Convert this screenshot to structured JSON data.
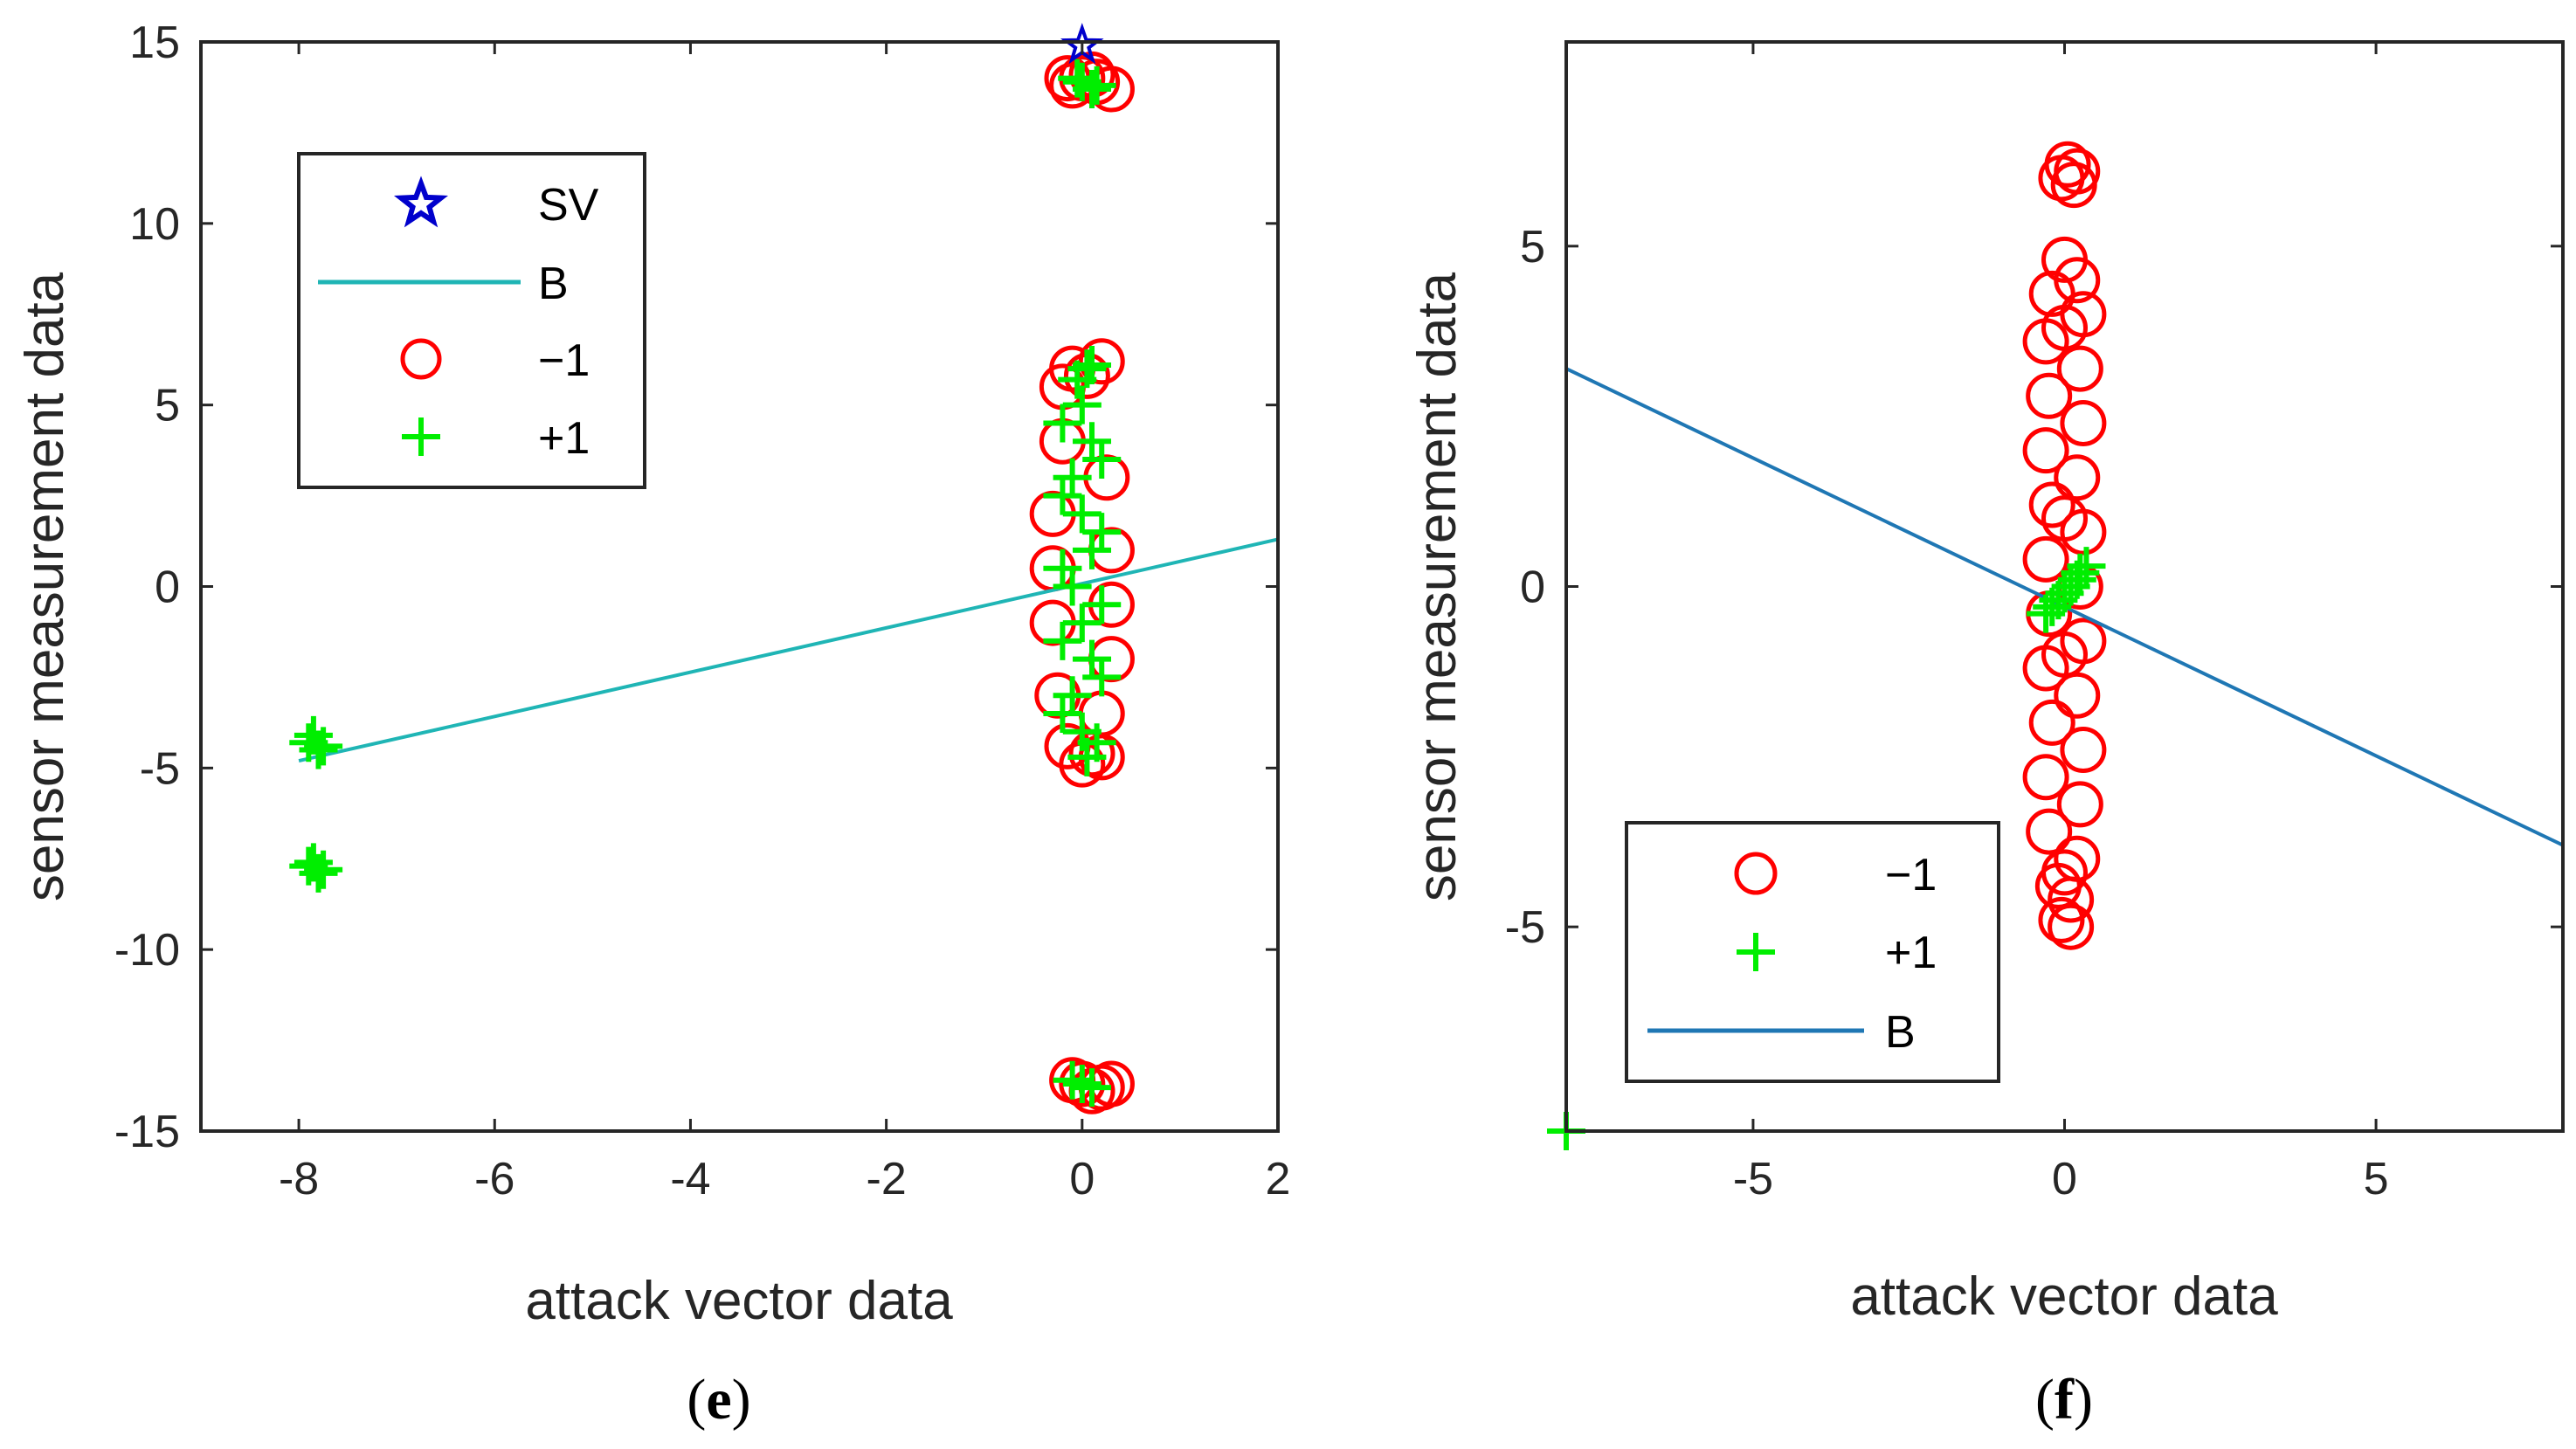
{
  "chart_data": [
    {
      "type": "scatter",
      "panel_label": "e",
      "xlabel": "attack vector data",
      "ylabel": "sensor measurement data",
      "xlim": [
        -9,
        2
      ],
      "ylim": [
        -15,
        15
      ],
      "xticks": [
        -8,
        -6,
        -4,
        -2,
        0,
        2
      ],
      "xtick_labels": [
        "-8",
        "-6",
        "-4",
        "-2",
        "0",
        "2"
      ],
      "yticks": [
        -15,
        -10,
        -5,
        0,
        5,
        10,
        15
      ],
      "ytick_labels": [
        "-15",
        "-10",
        "-5",
        "0",
        "5",
        "10",
        "15"
      ],
      "legend": [
        {
          "kind": "star",
          "label": "SV",
          "color": "#0000cc"
        },
        {
          "kind": "line",
          "label": "B",
          "color": "#1fb5b5"
        },
        {
          "kind": "circle",
          "label": "−1",
          "color": "#ff0000"
        },
        {
          "kind": "plus",
          "label": "+1",
          "color": "#00ee00"
        }
      ],
      "legend_position": "top-left",
      "boundary": {
        "x1": -8,
        "y1": -4.8,
        "x2": 2,
        "y2": 1.3,
        "color": "#1fb5b5"
      },
      "series": [
        {
          "name": "−1",
          "marker": "circle",
          "color": "#ff0000",
          "points": [
            [
              0,
              14
            ],
            [
              0.15,
              13.9
            ],
            [
              -0.1,
              13.8
            ],
            [
              0.3,
              13.7
            ],
            [
              0.1,
              14.1
            ],
            [
              -0.15,
              14
            ],
            [
              0,
              -13.7
            ],
            [
              0.2,
              -13.8
            ],
            [
              -0.1,
              -13.6
            ],
            [
              0.3,
              -13.7
            ],
            [
              0.1,
              -13.9
            ],
            [
              -0.1,
              6
            ],
            [
              0.2,
              6.2
            ],
            [
              0.05,
              5.8
            ],
            [
              -0.2,
              5.5
            ],
            [
              0.1,
              -4.6
            ],
            [
              -0.15,
              -4.4
            ],
            [
              0.2,
              -4.7
            ],
            [
              0,
              -4.9
            ],
            [
              -0.3,
              2
            ],
            [
              0.3,
              1
            ],
            [
              -0.3,
              -1
            ],
            [
              0.3,
              -2
            ],
            [
              -0.25,
              -3
            ],
            [
              0.25,
              3
            ],
            [
              -0.3,
              0.5
            ],
            [
              0.3,
              -0.5
            ],
            [
              -0.2,
              4
            ],
            [
              0.2,
              -3.5
            ]
          ]
        },
        {
          "name": "+1",
          "marker": "plus",
          "color": "#00ee00",
          "points": [
            [
              -7.9,
              -4.3
            ],
            [
              -7.8,
              -4.5
            ],
            [
              -7.85,
              -4.1
            ],
            [
              -7.75,
              -4.4
            ],
            [
              -7.9,
              -7.7
            ],
            [
              -7.8,
              -7.9
            ],
            [
              -7.85,
              -7.6
            ],
            [
              -7.75,
              -7.8
            ],
            [
              0,
              13.9
            ],
            [
              0.1,
              13.7
            ],
            [
              -0.05,
              14
            ],
            [
              0.15,
              13.8
            ],
            [
              0,
              -13.7
            ],
            [
              0.1,
              -13.8
            ],
            [
              -0.1,
              -13.6
            ],
            [
              0.05,
              6
            ],
            [
              -0.05,
              5.7
            ],
            [
              0.1,
              6.1
            ],
            [
              0,
              5
            ],
            [
              0.1,
              4
            ],
            [
              -0.1,
              3
            ],
            [
              0,
              2
            ],
            [
              0.1,
              1
            ],
            [
              -0.1,
              0
            ],
            [
              0,
              -1
            ],
            [
              0.1,
              -2
            ],
            [
              -0.1,
              -3
            ],
            [
              0,
              -4
            ],
            [
              0.05,
              -4.7
            ],
            [
              -0.2,
              4.5
            ],
            [
              0.2,
              3.5
            ],
            [
              -0.2,
              2.5
            ],
            [
              0.2,
              1.5
            ],
            [
              -0.2,
              0.5
            ],
            [
              0.2,
              -0.5
            ],
            [
              -0.2,
              -1.5
            ],
            [
              0.2,
              -2.5
            ],
            [
              -0.2,
              -3.5
            ],
            [
              0.15,
              -4.3
            ]
          ]
        },
        {
          "name": "SV",
          "marker": "star",
          "color": "#0000cc",
          "points": [
            [
              0,
              14.9
            ]
          ]
        }
      ]
    },
    {
      "type": "scatter",
      "panel_label": "f",
      "xlabel": "attack vector data",
      "ylabel": "sensor measurement data",
      "xlim": [
        -8,
        8
      ],
      "ylim": [
        -8,
        8
      ],
      "xticks": [
        -5,
        0,
        5
      ],
      "xtick_labels": [
        "-5",
        "0",
        "5"
      ],
      "yticks": [
        -5,
        0,
        5
      ],
      "ytick_labels": [
        "-5",
        "0",
        "5"
      ],
      "legend": [
        {
          "kind": "circle",
          "label": "−1",
          "color": "#ff0000"
        },
        {
          "kind": "plus",
          "label": "+1",
          "color": "#00ee00"
        },
        {
          "kind": "line",
          "label": "B",
          "color": "#1f77b4"
        }
      ],
      "legend_position": "bottom-left",
      "boundary": {
        "x1": -8,
        "y1": 3.2,
        "x2": 8,
        "y2": -3.8,
        "color": "#1f77b4"
      },
      "series": [
        {
          "name": "−1",
          "marker": "circle",
          "color": "#ff0000",
          "points": [
            [
              0.05,
              6.2
            ],
            [
              0.15,
              5.9
            ],
            [
              -0.05,
              6
            ],
            [
              0.2,
              6.1
            ],
            [
              0,
              4.8
            ],
            [
              0.2,
              4.5
            ],
            [
              -0.2,
              4.3
            ],
            [
              0.3,
              4
            ],
            [
              -0.3,
              3.6
            ],
            [
              0.25,
              3.2
            ],
            [
              -0.25,
              2.8
            ],
            [
              0.3,
              2.4
            ],
            [
              -0.3,
              2
            ],
            [
              0.2,
              1.6
            ],
            [
              -0.2,
              1.2
            ],
            [
              0.3,
              0.8
            ],
            [
              -0.3,
              0.4
            ],
            [
              0.25,
              0
            ],
            [
              -0.25,
              -0.4
            ],
            [
              0.3,
              -0.8
            ],
            [
              -0.3,
              -1.2
            ],
            [
              0.2,
              -1.6
            ],
            [
              -0.2,
              -2
            ],
            [
              0.3,
              -2.4
            ],
            [
              -0.3,
              -2.8
            ],
            [
              0.25,
              -3.2
            ],
            [
              -0.25,
              -3.6
            ],
            [
              0.2,
              -4
            ],
            [
              -0.1,
              -4.4
            ],
            [
              0.1,
              -4.6
            ],
            [
              -0.05,
              -4.9
            ],
            [
              0.1,
              -5
            ],
            [
              0,
              -4.2
            ],
            [
              0,
              3.8
            ],
            [
              0,
              1
            ],
            [
              0,
              -1
            ]
          ]
        },
        {
          "name": "+1",
          "marker": "plus",
          "color": "#00ee00",
          "points": [
            [
              -0.2,
              -0.3
            ],
            [
              0,
              -0.1
            ],
            [
              0.2,
              0.1
            ],
            [
              0.35,
              0.3
            ],
            [
              -0.1,
              -0.2
            ],
            [
              0.1,
              0
            ],
            [
              0.25,
              0.2
            ],
            [
              -0.3,
              -0.4
            ],
            [
              -8,
              -8
            ]
          ]
        }
      ]
    }
  ]
}
